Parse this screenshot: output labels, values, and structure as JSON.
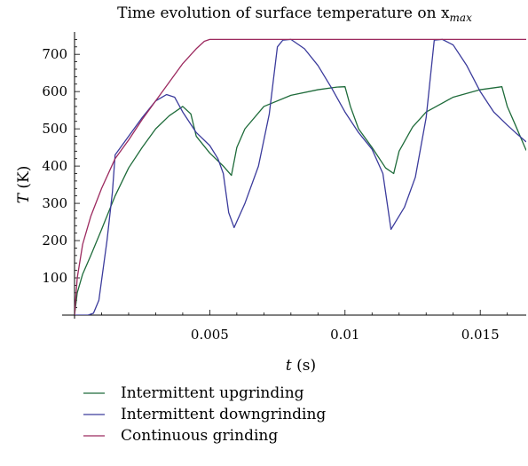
{
  "chart_data": {
    "type": "line",
    "title": "Time evolution of surface temperature on x",
    "title_sub": "max",
    "xlabel": "t",
    "xunit": "(s)",
    "ylabel": "T",
    "yunit": "(K)",
    "xlim": [
      0,
      0.0167
    ],
    "ylim": [
      0,
      760
    ],
    "xticks": [
      {
        "value": 0.005,
        "label": "0.005"
      },
      {
        "value": 0.01,
        "label": "0.01"
      },
      {
        "value": 0.015,
        "label": "0.015"
      }
    ],
    "yticks": [
      {
        "value": 100,
        "label": "100"
      },
      {
        "value": 200,
        "label": "200"
      },
      {
        "value": 300,
        "label": "300"
      },
      {
        "value": 400,
        "label": "400"
      },
      {
        "value": 500,
        "label": "500"
      },
      {
        "value": 600,
        "label": "600"
      },
      {
        "value": 700,
        "label": "700"
      }
    ],
    "grid": false,
    "legend_position": "bottom-left",
    "series": [
      {
        "name": "Intermittent upgrinding",
        "color": "#1e6b3a",
        "points": [
          [
            0,
            0
          ],
          [
            0.0001,
            60
          ],
          [
            0.0003,
            110
          ],
          [
            0.0006,
            160
          ],
          [
            0.001,
            230
          ],
          [
            0.0015,
            320
          ],
          [
            0.002,
            395
          ],
          [
            0.0025,
            450
          ],
          [
            0.003,
            500
          ],
          [
            0.0035,
            535
          ],
          [
            0.004,
            560
          ],
          [
            0.0043,
            540
          ],
          [
            0.0045,
            480
          ],
          [
            0.005,
            435
          ],
          [
            0.0055,
            400
          ],
          [
            0.0058,
            375
          ],
          [
            0.006,
            450
          ],
          [
            0.0063,
            500
          ],
          [
            0.007,
            560
          ],
          [
            0.008,
            590
          ],
          [
            0.009,
            605
          ],
          [
            0.0097,
            612
          ],
          [
            0.01,
            613
          ],
          [
            0.0102,
            560
          ],
          [
            0.0105,
            500
          ],
          [
            0.011,
            450
          ],
          [
            0.0115,
            395
          ],
          [
            0.0118,
            380
          ],
          [
            0.012,
            440
          ],
          [
            0.0125,
            505
          ],
          [
            0.013,
            545
          ],
          [
            0.014,
            585
          ],
          [
            0.015,
            605
          ],
          [
            0.0158,
            613
          ],
          [
            0.016,
            560
          ],
          [
            0.0163,
            510
          ],
          [
            0.0167,
            442
          ]
        ]
      },
      {
        "name": "Intermittent downgrinding",
        "color": "#3b3b9c",
        "points": [
          [
            0,
            0
          ],
          [
            0.0005,
            0
          ],
          [
            0.0007,
            5
          ],
          [
            0.0009,
            40
          ],
          [
            0.0012,
            200
          ],
          [
            0.0014,
            330
          ],
          [
            0.0015,
            430
          ],
          [
            0.002,
            480
          ],
          [
            0.0025,
            530
          ],
          [
            0.003,
            575
          ],
          [
            0.0034,
            592
          ],
          [
            0.0037,
            585
          ],
          [
            0.004,
            545
          ],
          [
            0.0045,
            490
          ],
          [
            0.005,
            455
          ],
          [
            0.0053,
            420
          ],
          [
            0.0055,
            380
          ],
          [
            0.0057,
            275
          ],
          [
            0.0059,
            235
          ],
          [
            0.0063,
            300
          ],
          [
            0.0068,
            400
          ],
          [
            0.0072,
            540
          ],
          [
            0.0075,
            720
          ],
          [
            0.0077,
            738
          ],
          [
            0.008,
            740
          ],
          [
            0.0085,
            715
          ],
          [
            0.009,
            670
          ],
          [
            0.0095,
            610
          ],
          [
            0.01,
            545
          ],
          [
            0.0105,
            490
          ],
          [
            0.011,
            445
          ],
          [
            0.0114,
            380
          ],
          [
            0.0117,
            230
          ],
          [
            0.0122,
            290
          ],
          [
            0.0126,
            370
          ],
          [
            0.013,
            530
          ],
          [
            0.0133,
            738
          ],
          [
            0.0136,
            740
          ],
          [
            0.014,
            725
          ],
          [
            0.0145,
            670
          ],
          [
            0.015,
            600
          ],
          [
            0.0155,
            545
          ],
          [
            0.016,
            510
          ],
          [
            0.0163,
            490
          ],
          [
            0.0167,
            465
          ]
        ]
      },
      {
        "name": "Continuous grinding",
        "color": "#9c2a5f",
        "points": [
          [
            0,
            0
          ],
          [
            0.0001,
            100
          ],
          [
            0.0003,
            190
          ],
          [
            0.0006,
            265
          ],
          [
            0.001,
            340
          ],
          [
            0.0015,
            420
          ],
          [
            0.002,
            470
          ],
          [
            0.0025,
            525
          ],
          [
            0.003,
            575
          ],
          [
            0.0035,
            625
          ],
          [
            0.004,
            675
          ],
          [
            0.0045,
            715
          ],
          [
            0.0048,
            735
          ],
          [
            0.005,
            740
          ],
          [
            0.006,
            740
          ],
          [
            0.0167,
            740
          ]
        ]
      }
    ]
  }
}
